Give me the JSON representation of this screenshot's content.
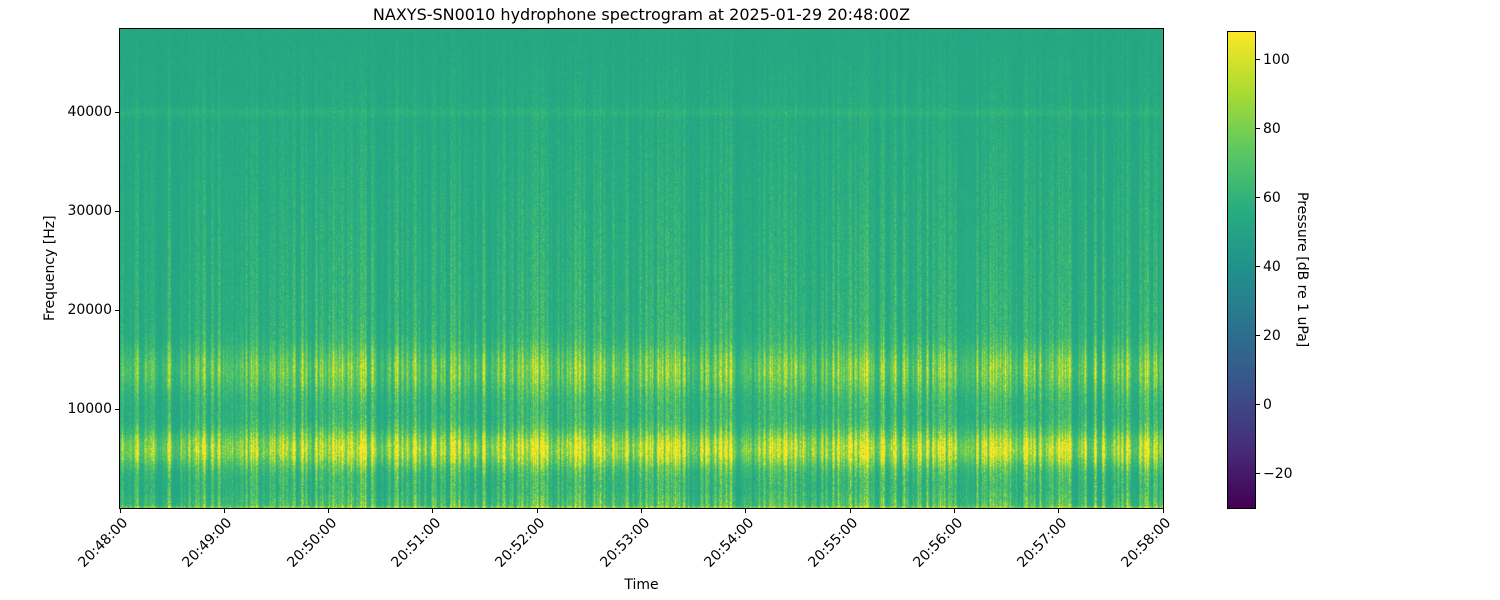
{
  "chart_data": {
    "type": "heatmap",
    "subtype": "spectrogram",
    "title": "NAXYS-SN0010 hydrophone spectrogram at 2025-01-29 20:48:00Z",
    "xlabel": "Time",
    "ylabel": "Frequency [Hz]",
    "x_ticks": [
      "20:48:00",
      "20:49:00",
      "20:50:00",
      "20:51:00",
      "20:52:00",
      "20:53:00",
      "20:54:00",
      "20:55:00",
      "20:56:00",
      "20:57:00",
      "20:58:00"
    ],
    "x_tick_rotation_deg": 45,
    "y_ticks": [
      10000,
      20000,
      30000,
      40000
    ],
    "ylim_hz": [
      0,
      48400
    ],
    "grid": false,
    "colormap": "viridis",
    "colorbar": {
      "label": "Pressure [dB re 1 uPa]",
      "ticks": [
        100,
        80,
        60,
        40,
        20,
        0,
        -20
      ],
      "vmin": -30,
      "vmax": 108
    },
    "features": {
      "background_db": 52,
      "bands": [
        {
          "freq_center_hz": 6000,
          "freq_width_hz": 2600,
          "peak_db": 78,
          "description": "bright speckled broadband band near 5-7 kHz"
        },
        {
          "freq_center_hz": 14000,
          "freq_width_hz": 3500,
          "peak_db": 64,
          "description": "moderate speckled band near 12.5-15.5 kHz"
        },
        {
          "freq_center_hz": 40000,
          "freq_width_hz": 500,
          "peak_db": 57,
          "description": "faint horizontal tonal line at 40 kHz"
        }
      ],
      "bottom_edge_db": 70,
      "vertical_transients": "many narrow broadband vertical streaks across the whole record, strongest below ~30 kHz"
    }
  }
}
